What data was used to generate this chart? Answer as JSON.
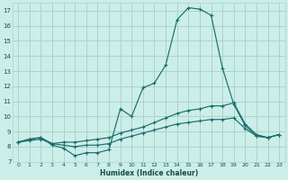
{
  "xlabel": "Humidex (Indice chaleur)",
  "bg_color": "#cceee8",
  "grid_color": "#aad4cc",
  "line_color": "#1a6e6e",
  "xlim": [
    -0.5,
    23.5
  ],
  "ylim": [
    7,
    17.5
  ],
  "xticks": [
    0,
    1,
    2,
    3,
    4,
    5,
    6,
    7,
    8,
    9,
    10,
    11,
    12,
    13,
    14,
    15,
    16,
    17,
    18,
    19,
    20,
    21,
    22,
    23
  ],
  "yticks": [
    7,
    8,
    9,
    10,
    11,
    12,
    13,
    14,
    15,
    16,
    17
  ],
  "series1_x": [
    0,
    1,
    2,
    3,
    4,
    5,
    6,
    7,
    8,
    9,
    10,
    11,
    12,
    13,
    14,
    15,
    16,
    17,
    18,
    19,
    20,
    21,
    22,
    23
  ],
  "series1_y": [
    8.3,
    8.5,
    8.6,
    8.1,
    7.9,
    7.4,
    7.6,
    7.6,
    7.8,
    10.5,
    10.0,
    11.9,
    12.2,
    13.4,
    16.4,
    17.2,
    17.1,
    16.7,
    13.2,
    10.8,
    9.4,
    8.7,
    8.6,
    8.8
  ],
  "series2_x": [
    0,
    1,
    2,
    3,
    4,
    5,
    6,
    7,
    8,
    9,
    10,
    11,
    12,
    13,
    14,
    15,
    16,
    17,
    18,
    19,
    20,
    21,
    22,
    23
  ],
  "series2_y": [
    8.3,
    8.5,
    8.6,
    8.2,
    8.3,
    8.3,
    8.4,
    8.5,
    8.6,
    8.9,
    9.1,
    9.3,
    9.6,
    9.9,
    10.2,
    10.4,
    10.5,
    10.7,
    10.7,
    10.9,
    9.5,
    8.8,
    8.6,
    8.8
  ],
  "series3_x": [
    0,
    1,
    2,
    3,
    4,
    5,
    6,
    7,
    8,
    9,
    10,
    11,
    12,
    13,
    14,
    15,
    16,
    17,
    18,
    19,
    20,
    21,
    22,
    23
  ],
  "series3_y": [
    8.3,
    8.4,
    8.5,
    8.2,
    8.1,
    8.0,
    8.1,
    8.1,
    8.2,
    8.5,
    8.7,
    8.9,
    9.1,
    9.3,
    9.5,
    9.6,
    9.7,
    9.8,
    9.8,
    9.9,
    9.2,
    8.7,
    8.6,
    8.8
  ]
}
